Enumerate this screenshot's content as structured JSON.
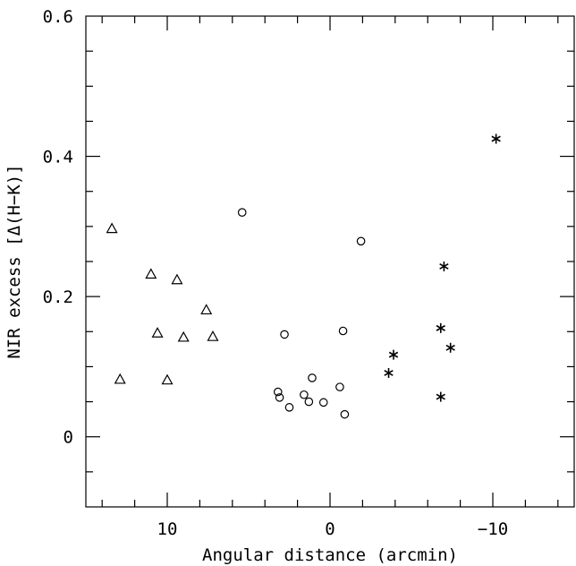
{
  "chart_data": {
    "type": "scatter",
    "xlabel": "Angular distance (arcmin)",
    "ylabel": "NIR excess [Δ(H−K)]",
    "xlim": [
      15,
      -15
    ],
    "ylim": [
      -0.1,
      0.6
    ],
    "x_ticks": [
      10,
      0,
      -10
    ],
    "x_tick_labels": [
      "10",
      "0",
      "−10"
    ],
    "y_ticks": [
      0,
      0.2,
      0.4,
      0.6
    ],
    "y_tick_labels": [
      "0",
      "0.2",
      "0.4",
      "0.6"
    ],
    "x_minor_step": 2,
    "y_minor_step": 0.05,
    "grid": false,
    "series": [
      {
        "marker": "triangle",
        "points": [
          [
            13.4,
            0.297
          ],
          [
            12.9,
            0.082
          ],
          [
            11.0,
            0.232
          ],
          [
            10.6,
            0.148
          ],
          [
            10.0,
            0.081
          ],
          [
            9.4,
            0.224
          ],
          [
            9.0,
            0.142
          ],
          [
            7.6,
            0.181
          ],
          [
            7.2,
            0.143
          ]
        ]
      },
      {
        "marker": "circle",
        "points": [
          [
            5.4,
            0.32
          ],
          [
            3.2,
            0.064
          ],
          [
            3.1,
            0.056
          ],
          [
            2.8,
            0.146
          ],
          [
            2.5,
            0.042
          ],
          [
            1.6,
            0.06
          ],
          [
            1.3,
            0.05
          ],
          [
            1.1,
            0.084
          ],
          [
            0.4,
            0.049
          ],
          [
            -0.6,
            0.071
          ],
          [
            -0.8,
            0.151
          ],
          [
            -0.9,
            0.032
          ],
          [
            -1.9,
            0.279
          ]
        ]
      },
      {
        "marker": "asterisk",
        "points": [
          [
            -10.2,
            0.425
          ],
          [
            -7.0,
            0.243
          ],
          [
            -6.8,
            0.155
          ],
          [
            -6.8,
            0.057
          ],
          [
            -7.4,
            0.127
          ],
          [
            -3.9,
            0.117
          ],
          [
            -3.6,
            0.091
          ]
        ]
      }
    ]
  }
}
